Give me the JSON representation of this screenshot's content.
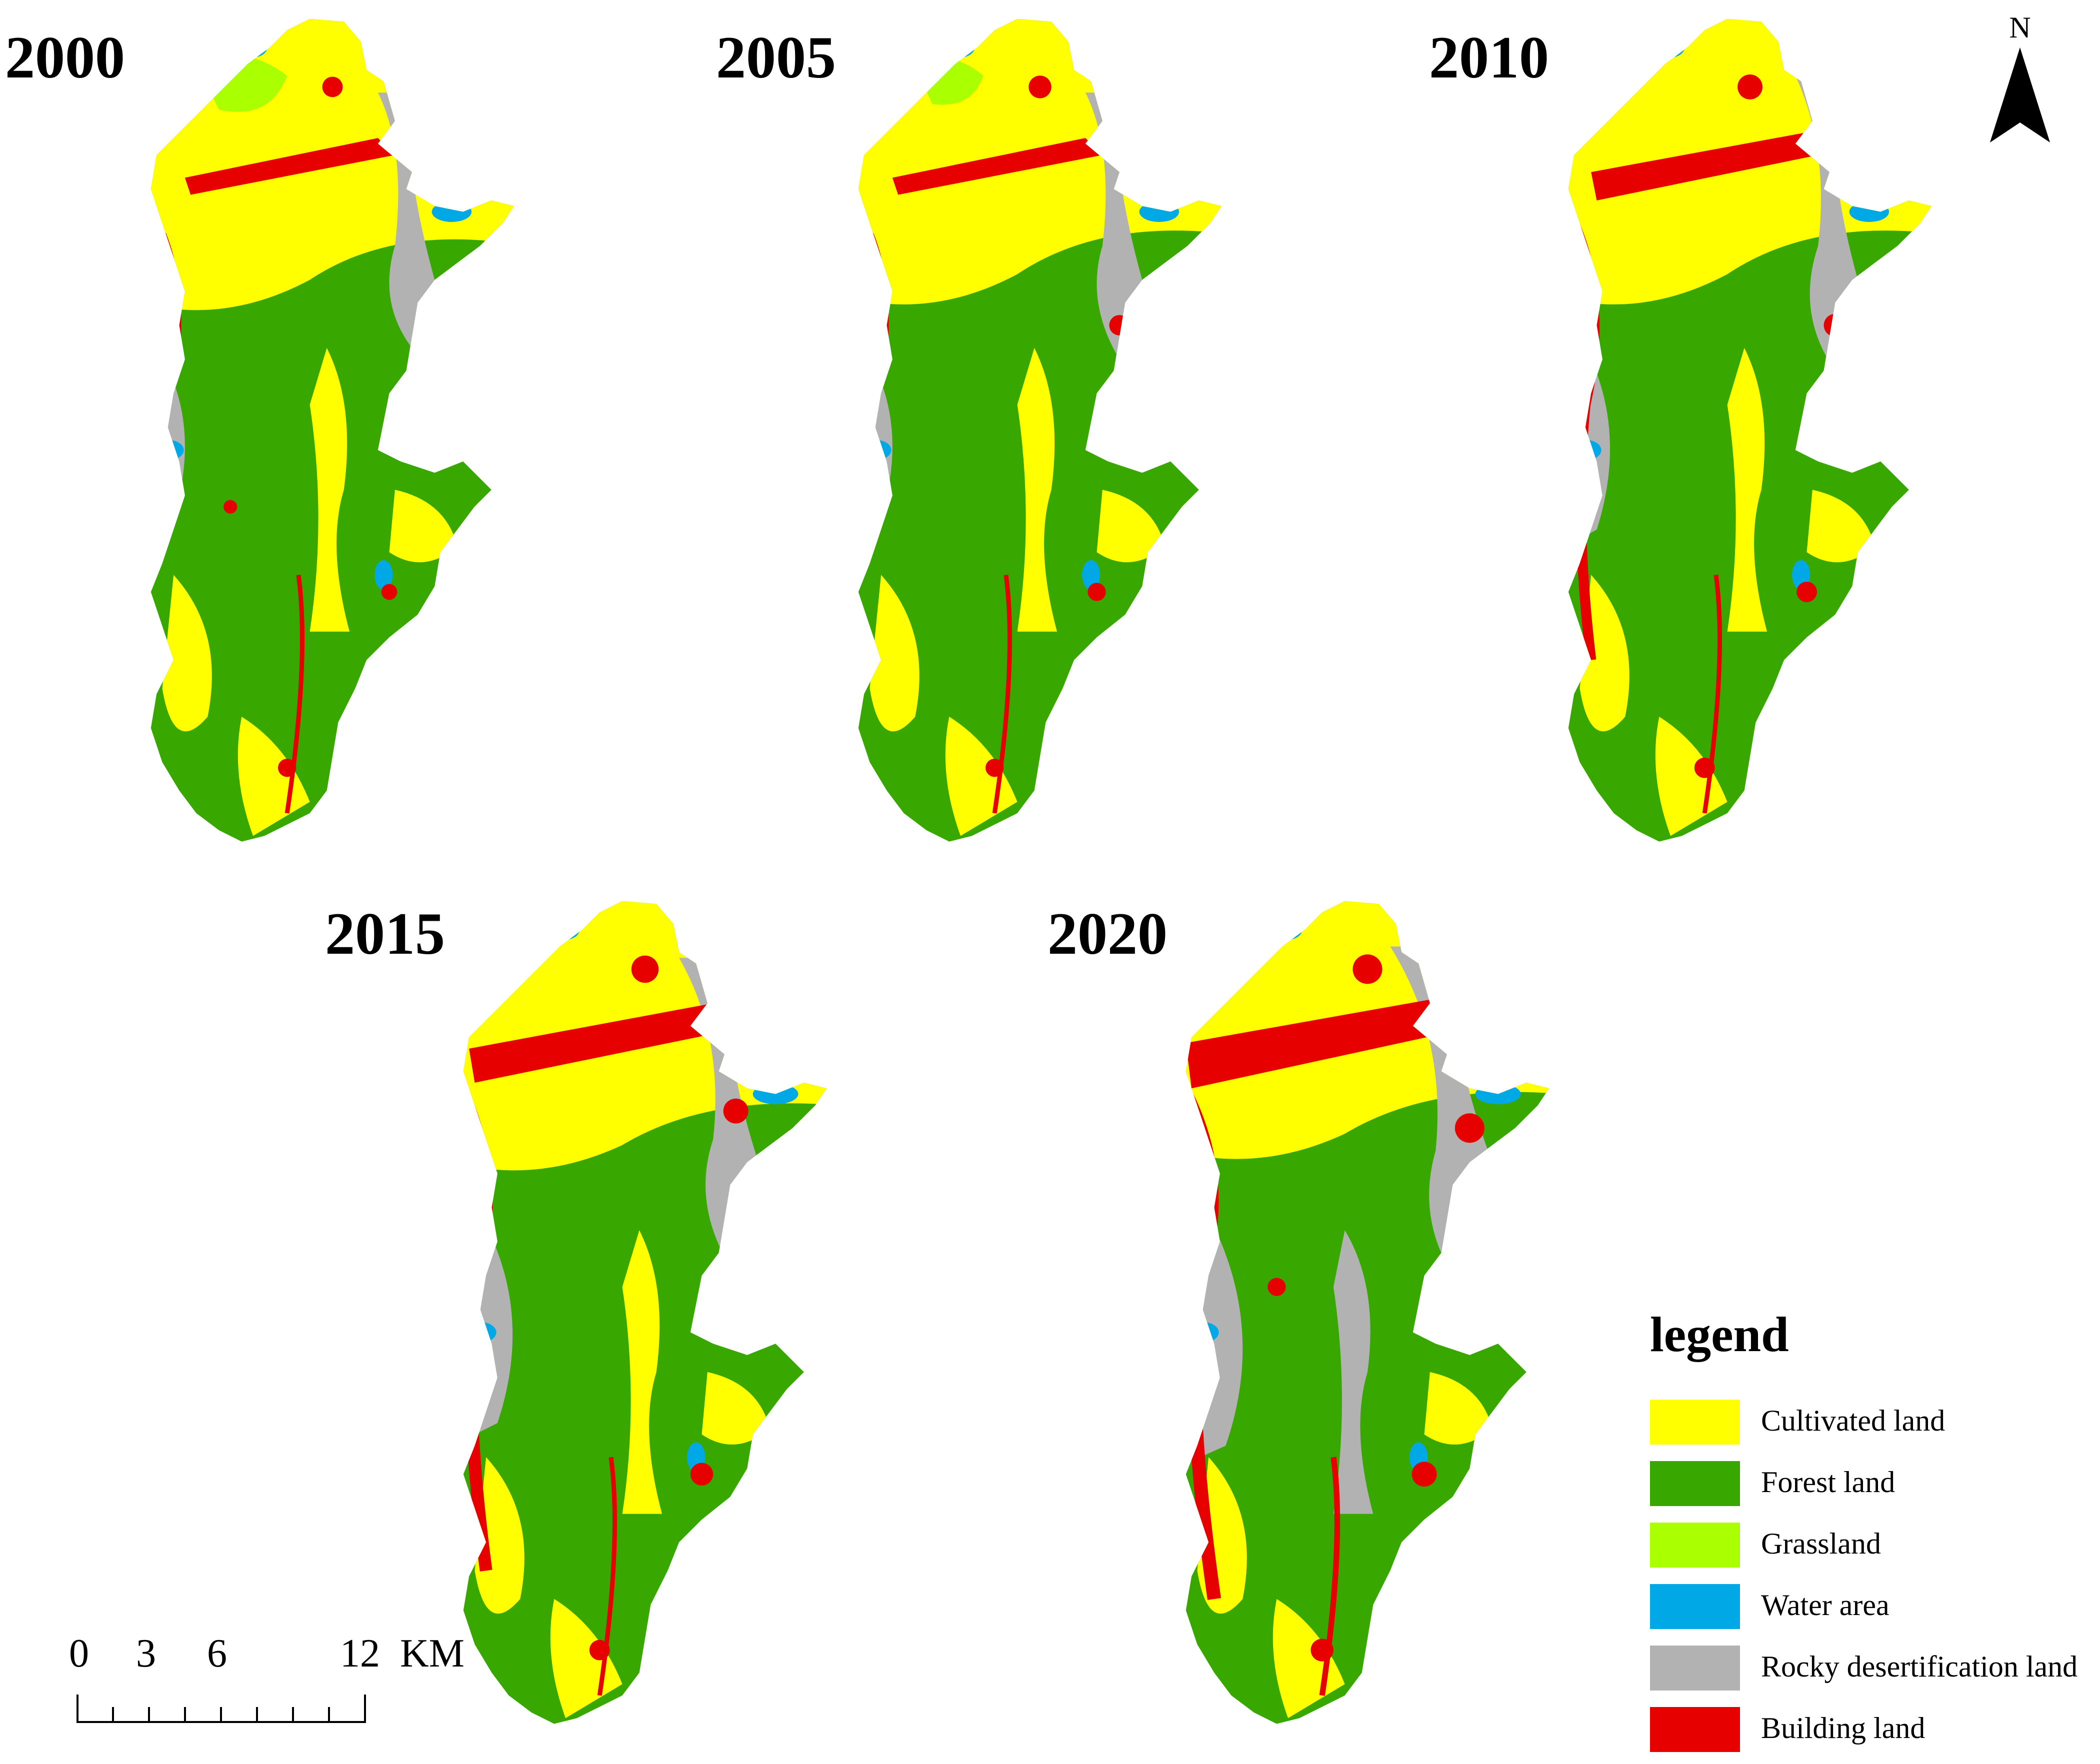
{
  "years": [
    "2000",
    "2005",
    "2010",
    "2015",
    "2020"
  ],
  "north_label": "N",
  "scale": {
    "ticks": [
      "0",
      "3",
      "6",
      "12"
    ],
    "unit": "KM"
  },
  "legend": {
    "title": "legend",
    "items": [
      {
        "label": "Cultivated land",
        "color": "#ffff00"
      },
      {
        "label": "Forest land",
        "color": "#38a800"
      },
      {
        "label": "Grassland",
        "color": "#aaff00"
      },
      {
        "label": "Water area",
        "color": "#00a9e6"
      },
      {
        "label": "Rocky desertification land",
        "color": "#b2b2b2"
      },
      {
        "label": "Building land",
        "color": "#e60000"
      }
    ]
  }
}
